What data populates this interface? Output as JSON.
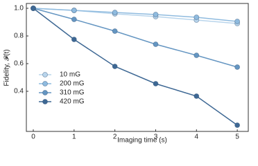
{
  "chart_data": {
    "type": "line",
    "x_label": "Imaging time (s)",
    "y_label": "Fidelity, 𝓕(t)",
    "x": [
      0,
      1,
      2,
      3,
      4,
      5
    ],
    "series": [
      {
        "name": "10 mG",
        "color": "#b9d5ec",
        "values": [
          1.0,
          0.985,
          0.96,
          0.94,
          0.915,
          0.89
        ]
      },
      {
        "name": "200 mG",
        "color": "#8fbbdf",
        "values": [
          1.0,
          0.985,
          0.97,
          0.955,
          0.935,
          0.905
        ]
      },
      {
        "name": "310 mG",
        "color": "#6596c2",
        "values": [
          1.0,
          0.92,
          0.835,
          0.74,
          0.66,
          0.575
        ]
      },
      {
        "name": "420 mG",
        "color": "#3e6894",
        "values": [
          1.0,
          0.775,
          0.58,
          0.455,
          0.365,
          0.155
        ]
      }
    ],
    "xlim": [
      -0.17,
      5.27
    ],
    "ylim": [
      0.11,
      1.035
    ],
    "xticks": [
      0,
      1,
      2,
      3,
      4,
      5
    ],
    "yticks": [
      0.4,
      0.6,
      0.8,
      {
        "value": 1.0,
        "label": "1.0"
      }
    ],
    "legend": "lower-left"
  }
}
